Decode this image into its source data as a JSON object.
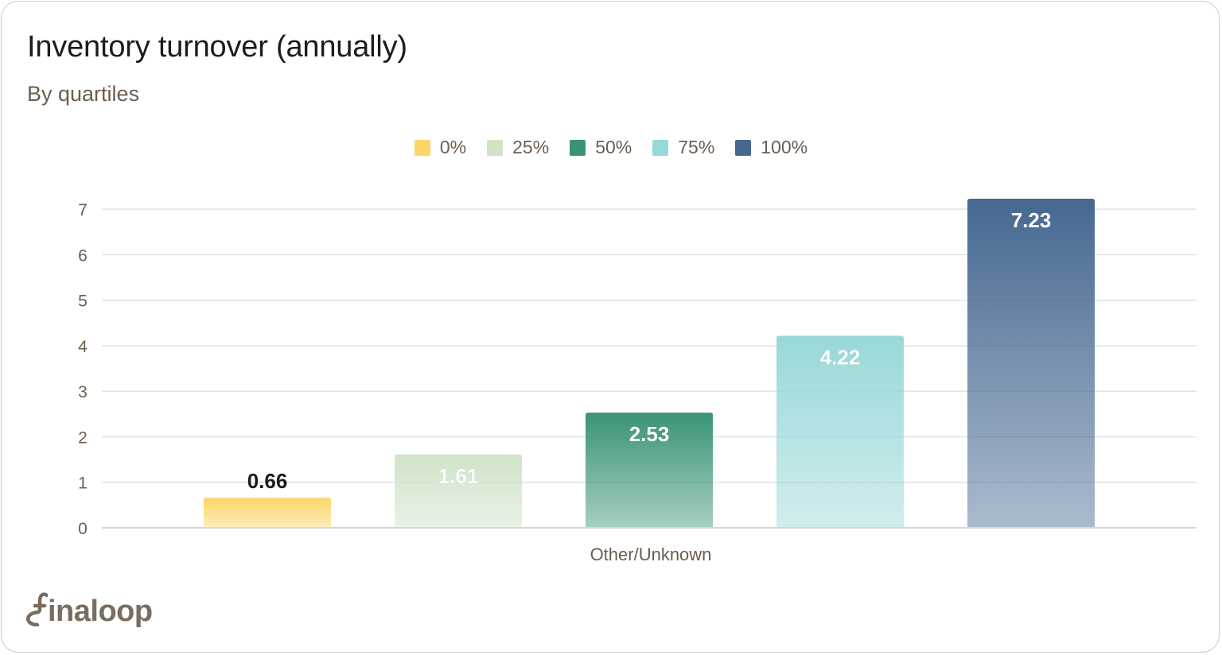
{
  "header": {
    "title": "Inventory turnover (annually)",
    "subtitle": "By quartiles"
  },
  "brand": {
    "name": "finaloop",
    "logo_letters": "inaloop"
  },
  "colors": {
    "q0": "#fbd567",
    "q25": "#cfe3c8",
    "q50": "#3a9474",
    "q75": "#99d8d8",
    "q100": "#456891",
    "grid": "#e2e2e2",
    "tick_text": "#6a5d52"
  },
  "chart_data": {
    "type": "bar",
    "title": "Inventory turnover (annually)",
    "subtitle": "By quartiles",
    "categories": [
      "Other/Unknown"
    ],
    "series": [
      {
        "name": "0%",
        "values": [
          0.66
        ],
        "color": "#fbd567",
        "label_color": "#1c1c1c"
      },
      {
        "name": "25%",
        "values": [
          1.61
        ],
        "color": "#cfe3c8",
        "label_color": "#ffffff"
      },
      {
        "name": "50%",
        "values": [
          2.53
        ],
        "color": "#3a9474",
        "label_color": "#ffffff"
      },
      {
        "name": "75%",
        "values": [
          4.22
        ],
        "color": "#99d8d8",
        "label_color": "#ffffff"
      },
      {
        "name": "100%",
        "values": [
          7.23
        ],
        "color": "#456891",
        "label_color": "#ffffff"
      }
    ],
    "data_labels": [
      "0.66",
      "1.61",
      "2.53",
      "4.22",
      "7.23"
    ],
    "y_ticks": [
      "0",
      "1",
      "2",
      "3",
      "4",
      "5",
      "6",
      "7"
    ],
    "ylim": [
      0,
      7.23
    ],
    "xlabel": "",
    "ylabel": "",
    "grid": true,
    "legend_position": "top-center"
  }
}
